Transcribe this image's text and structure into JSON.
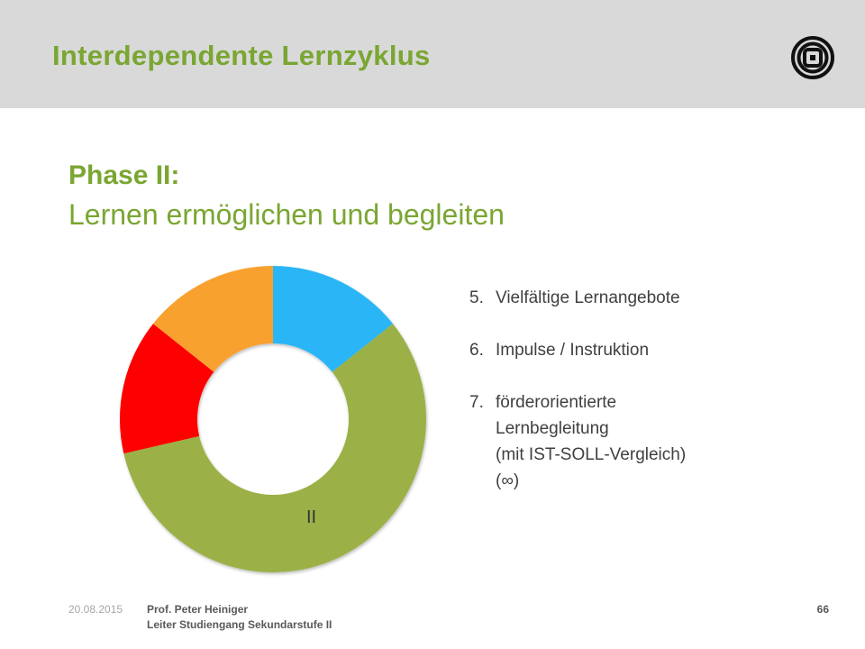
{
  "header": {
    "title": "Interdependente Lernzyklus",
    "background_color": "#d9d9d9",
    "accent_color": "#7aa632",
    "logo_icon": "concentric-square-logo-icon"
  },
  "content": {
    "phase_label": "Phase II:",
    "subtitle": "Lernen ermöglichen und begleiten",
    "items": [
      {
        "number": "5.",
        "text": "Vielfältige Lernangebote"
      },
      {
        "number": "6.",
        "text": "Impulse / Instruktion"
      },
      {
        "number": "7.",
        "text": "förderorientierte\nLernbegleitung\n(mit IST-SOLL-Vergleich)\n(∞)"
      }
    ]
  },
  "cycle_diagram": {
    "type": "donut",
    "segments": [
      {
        "share": 0.143,
        "color": "#29b6f6",
        "label": ""
      },
      {
        "share": 0.571,
        "color": "#9bb146",
        "label": "II"
      },
      {
        "share": 0.143,
        "color": "#ff0000",
        "label": ""
      },
      {
        "share": 0.143,
        "color": "#f9a12e",
        "label": ""
      }
    ]
  },
  "footer": {
    "date": "20.08.2015",
    "name": "Prof. Peter Heiniger",
    "role": "Leiter Studiengang Sekundarstufe II",
    "page_number": "66"
  }
}
